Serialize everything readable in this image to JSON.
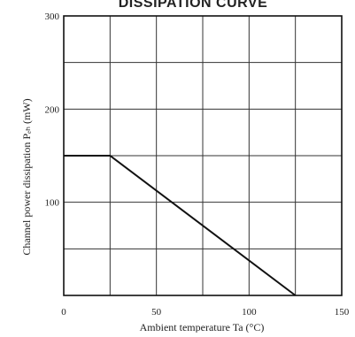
{
  "chart_data": {
    "type": "line",
    "title": "DISSIPATION CURVE",
    "xlabel": "Ambient temperature Ta (°C)",
    "ylabel": "Channel power dissipation  Pₑₕ (mW)",
    "xlim": [
      0,
      150
    ],
    "ylim": [
      0,
      300
    ],
    "x_ticks": [
      "0",
      "50",
      "100",
      "150"
    ],
    "y_ticks": [
      "100",
      "200",
      "300"
    ],
    "x_grid_step": 25,
    "y_grid_step": 50,
    "grid": true,
    "series": [
      {
        "x": [
          0,
          25,
          125
        ],
        "y": [
          150,
          150,
          0
        ]
      }
    ],
    "colors": {
      "line": "#111111",
      "grid": "#333333",
      "frame": "#111111"
    }
  }
}
